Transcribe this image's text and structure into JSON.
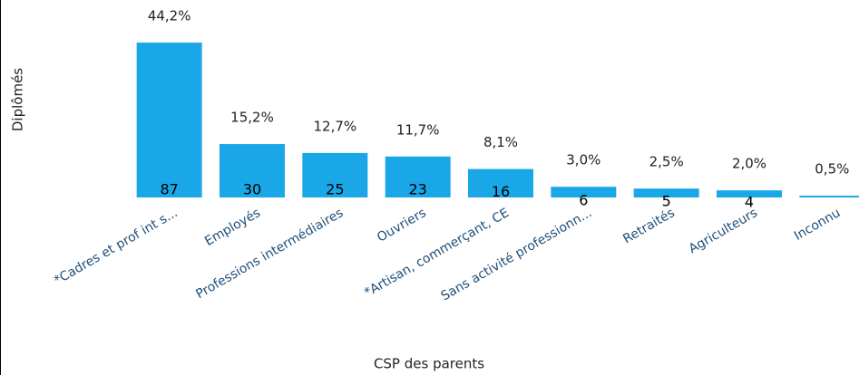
{
  "chart_data": {
    "type": "bar",
    "x_label": "CSP des parents",
    "y_label": "Diplômés",
    "categories": [
      "*Cadres et prof int s...",
      "Employés",
      "Professions intermédiaires",
      "Ouvriers",
      "*Artisan, commerçant, CE",
      "Sans activité professionn...",
      "Retraités",
      "Agriculteurs",
      "Inconnu"
    ],
    "values": [
      87,
      30,
      25,
      23,
      16,
      6,
      5,
      4,
      1
    ],
    "value_labels": [
      "87",
      "30",
      "25",
      "23",
      "16",
      "6",
      "5",
      "4",
      null
    ],
    "percent_labels": [
      "44,2%",
      "15,2%",
      "12,7%",
      "11,7%",
      "8,1%",
      "3,0%",
      "2,5%",
      "2,0%",
      "0,5%"
    ],
    "color": "#1aa7e8",
    "ylim": [
      0,
      100
    ]
  }
}
